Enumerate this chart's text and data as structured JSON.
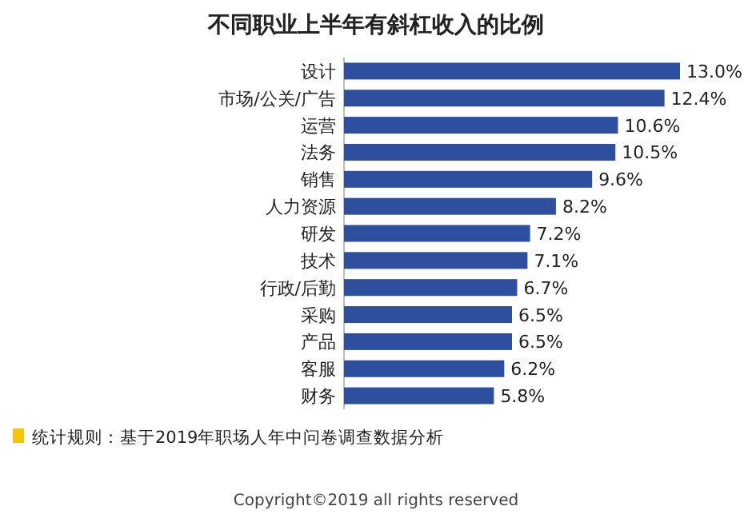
{
  "chart_data": {
    "type": "bar",
    "orientation": "horizontal",
    "title": "不同职业上半年有斜杠收入的比例",
    "categories": [
      "设计",
      "市场/公关/广告",
      "运营",
      "法务",
      "销售",
      "人力资源",
      "研发",
      "技术",
      "行政/后勤",
      "采购",
      "产品",
      "客服",
      "财务"
    ],
    "values": [
      13.0,
      12.4,
      10.6,
      10.5,
      9.6,
      8.2,
      7.2,
      7.1,
      6.7,
      6.5,
      6.5,
      6.2,
      5.8
    ],
    "value_labels": [
      "13.0%",
      "12.4%",
      "10.6%",
      "10.5%",
      "9.6%",
      "8.2%",
      "7.2%",
      "7.1%",
      "6.7%",
      "6.5%",
      "6.5%",
      "6.2%",
      "5.8%"
    ],
    "color": "#2d4f9e",
    "annotations": [
      "统计规则：基于2019年职场人年中问卷调查数据分析",
      "Copyright©2019 all rights reserved"
    ]
  }
}
